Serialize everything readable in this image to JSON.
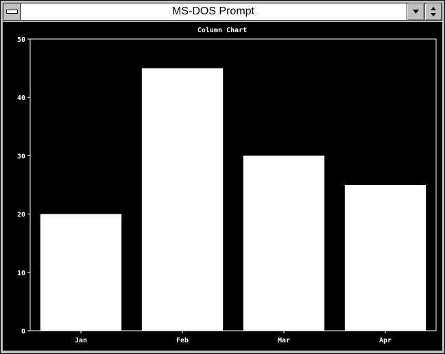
{
  "window": {
    "title": "MS-DOS Prompt",
    "sys_menu_icon": "system-menu-icon",
    "minimize_icon": "down-triangle-icon",
    "restore_icon": "up-down-triangle-icon"
  },
  "colors": {
    "chrome": "#c0c0c0",
    "screen_bg": "#000000",
    "bar": "#ffffff"
  },
  "chart_data": {
    "type": "bar",
    "title": "Column Chart",
    "categories": [
      "Jan",
      "Feb",
      "Mar",
      "Apr"
    ],
    "values": [
      20,
      45,
      30,
      25
    ],
    "yticks": [
      "0",
      "10",
      "20",
      "30",
      "40",
      "50"
    ],
    "ylim": [
      0,
      50
    ],
    "grid": false,
    "legend": "none"
  }
}
